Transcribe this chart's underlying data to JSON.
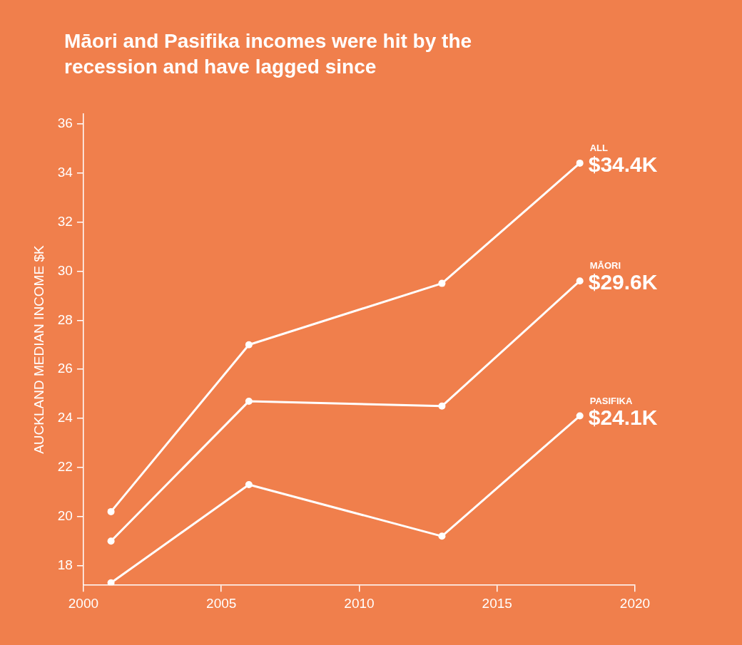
{
  "chart_data": {
    "type": "line",
    "title": "Māori and Pasifika incomes were hit by the recession and have lagged since",
    "ylabel": "AUCKLAND MEDIAN INCOME $K",
    "x": [
      2001,
      2006,
      2013,
      2018
    ],
    "series": [
      {
        "name": "ALL",
        "color": "#ffffff",
        "values": [
          20.2,
          27.0,
          29.5,
          34.4
        ],
        "value_labels": [
          null,
          null,
          null,
          "$34.4K"
        ]
      },
      {
        "name": "MĀORI",
        "color": "#ffffff",
        "values": [
          19.0,
          24.7,
          24.5,
          29.6
        ],
        "value_labels": [
          null,
          null,
          null,
          "$29.6K"
        ]
      },
      {
        "name": "PASIFIKA",
        "color": "#ffffff",
        "values": [
          17.3,
          21.3,
          19.2,
          24.1
        ],
        "value_labels": [
          null,
          null,
          null,
          "$24.1K"
        ]
      }
    ],
    "xlim": [
      2000,
      2020
    ],
    "xticks": [
      2000,
      2005,
      2010,
      2015,
      2020
    ],
    "ylim": [
      17.2,
      36.4
    ],
    "yticks": [
      18,
      20,
      22,
      24,
      26,
      28,
      30,
      32,
      34,
      36
    ],
    "grid": false,
    "legend": false,
    "marker": "circle",
    "line_style": "solid"
  }
}
